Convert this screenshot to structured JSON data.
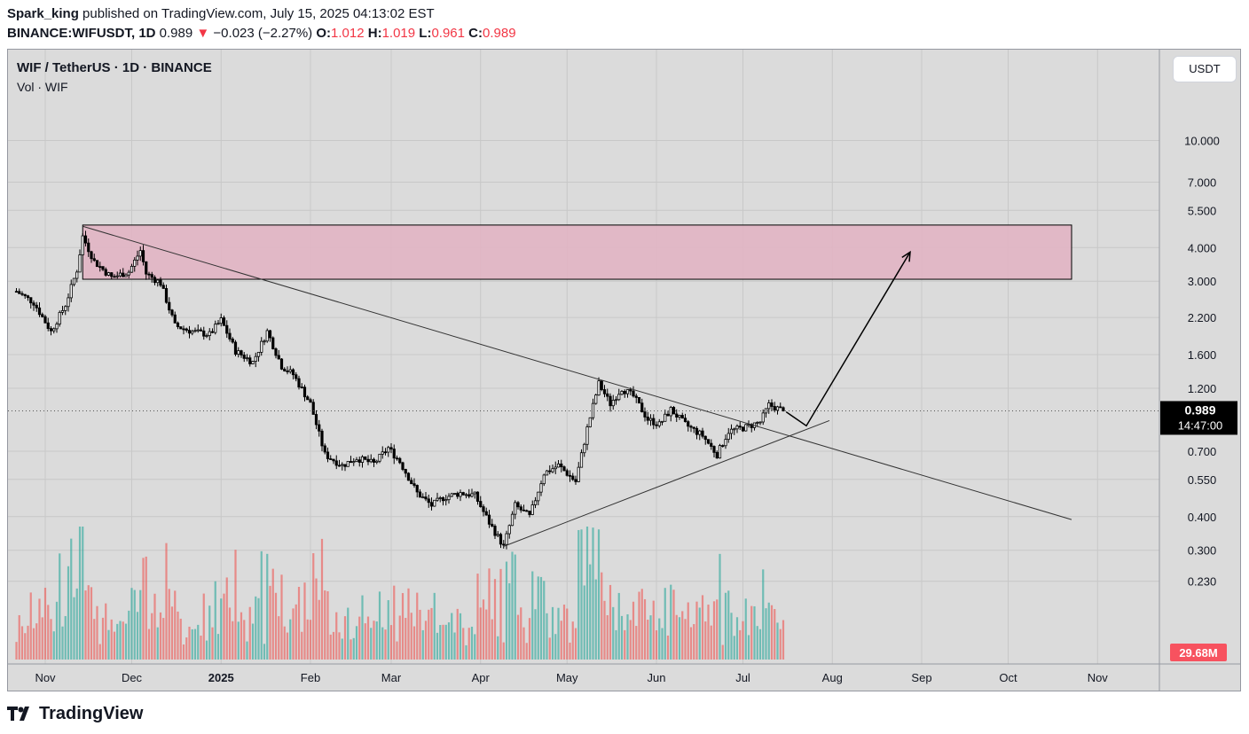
{
  "header": {
    "author": "Spark_king",
    "published_text": "published on TradingView.com, July 15, 2025 04:13:02 EST",
    "symbol": "BINANCE:WIFUSDT, 1D",
    "last": "0.989",
    "arrow": "▼",
    "change": "−0.023 (−2.27%)",
    "o_label": "O:",
    "o_value": "1.012",
    "h_label": "H:",
    "h_value": "1.019",
    "l_label": "L:",
    "l_value": "0.961",
    "c_label": "C:",
    "c_value": "0.989"
  },
  "legend": {
    "title": "WIF / TetherUS · 1D · BINANCE",
    "volume": "Vol · WIF"
  },
  "currency_button": "USDT",
  "price_badge": {
    "price": "0.989",
    "countdown": "14:47:00",
    "color": "#000000"
  },
  "volume_badge": {
    "value": "29.68M",
    "color": "#f7525f"
  },
  "footer": {
    "logo_text": "TradingView"
  },
  "colors": {
    "up": "#26a69a",
    "down": "#ef5350",
    "zone": "#e1b4c3",
    "background": "#dbdbdb"
  },
  "chart_data": {
    "type": "candlestick",
    "scale": "log",
    "interval": "1D",
    "ylim": [
      0.19,
      11.6
    ],
    "y_ticks": [
      "10.000",
      "7.000",
      "5.500",
      "4.000",
      "3.000",
      "2.200",
      "1.600",
      "1.200",
      "0.700",
      "0.550",
      "0.400",
      "0.300",
      "0.230"
    ],
    "x_ticks": [
      "Nov",
      "Dec",
      "2025",
      "Feb",
      "Mar",
      "Apr",
      "May",
      "Jun",
      "Jul",
      "Aug",
      "Sep",
      "Oct",
      "Nov"
    ],
    "grid": true,
    "current_price": 0.989,
    "last_volume": "29.68M",
    "price_path": [
      [
        "2024-10-22",
        2.75
      ],
      [
        "2024-10-28",
        2.5
      ],
      [
        "2024-11-03",
        1.95
      ],
      [
        "2024-11-08",
        2.45
      ],
      [
        "2024-11-12",
        3.3
      ],
      [
        "2024-11-14",
        4.4
      ],
      [
        "2024-11-18",
        3.55
      ],
      [
        "2024-11-24",
        3.1
      ],
      [
        "2024-11-30",
        3.25
      ],
      [
        "2024-12-04",
        3.9
      ],
      [
        "2024-12-06",
        3.2
      ],
      [
        "2024-12-11",
        2.95
      ],
      [
        "2024-12-16",
        2.05
      ],
      [
        "2024-12-22",
        1.95
      ],
      [
        "2024-12-28",
        1.9
      ],
      [
        "2025-01-01",
        2.15
      ],
      [
        "2025-01-06",
        1.65
      ],
      [
        "2025-01-12",
        1.5
      ],
      [
        "2025-01-17",
        1.95
      ],
      [
        "2025-01-22",
        1.45
      ],
      [
        "2025-01-26",
        1.35
      ],
      [
        "2025-02-01",
        1.05
      ],
      [
        "2025-02-06",
        0.68
      ],
      [
        "2025-02-12",
        0.62
      ],
      [
        "2025-02-17",
        0.66
      ],
      [
        "2025-02-23",
        0.63
      ],
      [
        "2025-02-28",
        0.72
      ],
      [
        "2025-03-04",
        0.64
      ],
      [
        "2025-03-10",
        0.49
      ],
      [
        "2025-03-15",
        0.44
      ],
      [
        "2025-03-19",
        0.47
      ],
      [
        "2025-03-25",
        0.49
      ],
      [
        "2025-03-30",
        0.48
      ],
      [
        "2025-04-04",
        0.38
      ],
      [
        "2025-04-09",
        0.31
      ],
      [
        "2025-04-13",
        0.44
      ],
      [
        "2025-04-18",
        0.4
      ],
      [
        "2025-04-23",
        0.58
      ],
      [
        "2025-04-28",
        0.62
      ],
      [
        "2025-05-04",
        0.54
      ],
      [
        "2025-05-08",
        0.85
      ],
      [
        "2025-05-12",
        1.25
      ],
      [
        "2025-05-16",
        1.05
      ],
      [
        "2025-05-20",
        1.2
      ],
      [
        "2025-05-24",
        1.12
      ],
      [
        "2025-05-29",
        0.92
      ],
      [
        "2025-06-02",
        0.88
      ],
      [
        "2025-06-06",
        1.0
      ],
      [
        "2025-06-11",
        0.88
      ],
      [
        "2025-06-17",
        0.8
      ],
      [
        "2025-06-22",
        0.68
      ],
      [
        "2025-06-26",
        0.83
      ],
      [
        "2025-07-02",
        0.86
      ],
      [
        "2025-07-07",
        0.9
      ],
      [
        "2025-07-10",
        1.04
      ],
      [
        "2025-07-15",
        0.989
      ]
    ],
    "annotations": {
      "resistance_zone": {
        "from": "2024-11-14",
        "to": "2025-10-23",
        "low": 3.05,
        "high": 4.85
      },
      "descending_trendline": {
        "from": [
          "2024-11-14",
          4.8
        ],
        "to": [
          "2025-10-23",
          0.39
        ]
      },
      "ascending_trendline": {
        "from": [
          "2025-04-09",
          0.31
        ],
        "to": [
          "2025-07-31",
          0.91
        ]
      },
      "projection_path": [
        [
          "2025-07-16",
          0.98
        ],
        [
          "2025-07-23",
          0.87
        ],
        [
          "2025-08-28",
          3.85
        ]
      ]
    }
  }
}
